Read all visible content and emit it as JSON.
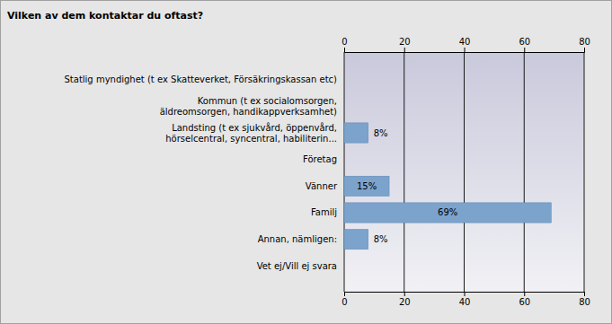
{
  "chart_data": {
    "type": "bar",
    "title": "Vilken av dem kontaktar du oftast?",
    "orientation": "horizontal",
    "categories": [
      "Statlig myndighet (t ex Skatteverket, Försäkringskassan etc)",
      "Kommun (t ex socialomsorgen,\näldreomsorgen, handikappverksamhet)",
      "Landsting (t ex sjukvård, öppenvård,\nhörselcentral, syncentral, habiliterin...",
      "Företag",
      "Vänner",
      "Familj",
      "Annan, nämligen:",
      "Vet ej/Vill ej svara"
    ],
    "values": [
      0,
      0,
      8,
      0,
      15,
      69,
      8,
      0
    ],
    "value_labels": [
      null,
      null,
      "8%",
      null,
      "15%",
      "69%",
      "8%",
      null
    ],
    "data_labels": true,
    "color": "#7ba3cc",
    "xlim": [
      0,
      80
    ],
    "xticks": [
      0,
      20,
      40,
      60,
      80
    ],
    "grid": true
  }
}
